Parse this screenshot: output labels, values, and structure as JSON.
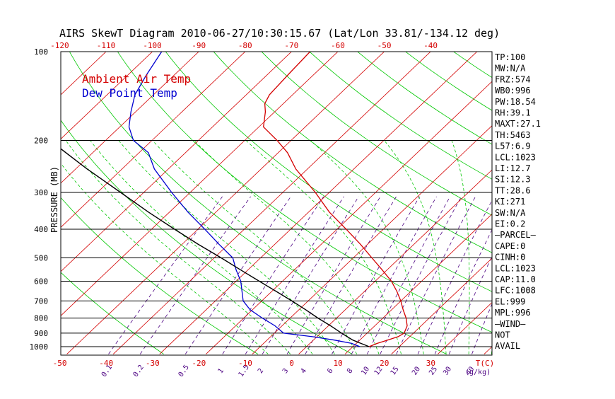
{
  "chart_data": {
    "type": "line",
    "title": "AIRS SkewT Diagram 2010-06-27/10:30:15.67 (Lat/Lon 33.81/-134.12 deg)",
    "ylabel": "PRESSURE (MB)",
    "xlabel_bottom_unit": "T(C)",
    "mixing_ratio_unit": "(g/kg)",
    "grid": true,
    "yscale": "log",
    "ylim": [
      1050,
      100
    ],
    "xlim_at_1000mb": [
      -53,
      40
    ],
    "pressure_ticks": [
      100,
      200,
      300,
      400,
      500,
      600,
      700,
      800,
      900,
      1000
    ],
    "pressure_lines": [
      100,
      200,
      300,
      400,
      500,
      600,
      700,
      800,
      900,
      1000
    ],
    "top_temp_ticks": [
      -120,
      -110,
      -100,
      -90,
      -80,
      -70,
      -60,
      -50,
      -40
    ],
    "bottom_temp_ticks": [
      -50,
      -40,
      -30,
      -20,
      -10,
      0,
      10,
      20,
      30
    ],
    "isotherms": [
      -160,
      -150,
      -140,
      -130,
      -120,
      -110,
      -100,
      -90,
      -80,
      -70,
      -60,
      -50,
      -40,
      -30,
      -20,
      -10,
      0,
      10,
      20,
      30,
      40
    ],
    "dry_adiabats_theta_k": [
      240,
      260,
      280,
      300,
      320,
      340,
      360,
      380,
      400,
      420,
      440,
      460,
      480,
      500,
      520,
      540,
      560,
      580
    ],
    "moist_adiabats_c": [
      -10,
      -5,
      0,
      5,
      10,
      15,
      20,
      25,
      30,
      35,
      40
    ],
    "mixing_ratio_labels": [
      "0.1",
      "0.2",
      "0.5",
      "1",
      "1.5",
      "2",
      "3",
      "4",
      "6",
      "8",
      "10",
      "12",
      "15",
      "20",
      "25",
      "30",
      "40"
    ],
    "mixing_ratio_values": [
      0.1,
      0.2,
      0.5,
      1,
      1.5,
      2,
      3,
      4,
      6,
      8,
      10,
      12,
      15,
      20,
      25,
      30,
      40
    ],
    "series": [
      {
        "name": "Ambient Air Temp",
        "color": "#d40000",
        "p": [
          1000,
          975,
          950,
          925,
          900,
          850,
          800,
          750,
          700,
          650,
          600,
          550,
          500,
          450,
          400,
          350,
          300,
          250,
          220,
          200,
          180,
          160,
          150,
          140,
          120,
          100
        ],
        "t": [
          13.5,
          14.5,
          16.0,
          17.5,
          18.0,
          17.0,
          15.0,
          12.5,
          10.0,
          7.0,
          3.5,
          -1.0,
          -6.0,
          -11.5,
          -18.0,
          -25.5,
          -33.0,
          -42.5,
          -48.0,
          -53.0,
          -59.0,
          -62.0,
          -64.0,
          -65.0,
          -65.5,
          -66.0
        ]
      },
      {
        "name": "Dew Point Temp",
        "color": "#0000d0",
        "p": [
          1000,
          975,
          950,
          925,
          900,
          850,
          800,
          750,
          700,
          600,
          550,
          500,
          450,
          400,
          350,
          300,
          250,
          220,
          200,
          180,
          160,
          140,
          120,
          100
        ],
        "t": [
          11.5,
          9.0,
          4.5,
          -1.0,
          -8.0,
          -11.5,
          -16.0,
          -20.5,
          -24.0,
          -29.0,
          -32.5,
          -36.0,
          -42.0,
          -48.5,
          -56.0,
          -64.0,
          -73.0,
          -78.0,
          -84.0,
          -88.0,
          -91.0,
          -94.0,
          -96.0,
          -98.0
        ]
      },
      {
        "name": "",
        "color": "#000000",
        "p": [
          1000,
          975,
          950,
          925,
          900,
          850,
          800,
          750,
          700,
          650,
          600,
          550,
          500,
          450,
          400,
          350,
          300,
          250,
          200,
          180,
          160,
          150
        ],
        "t": [
          13.5,
          11.0,
          8.5,
          6.5,
          4.5,
          0.5,
          -4.0,
          -8.5,
          -13.5,
          -19.0,
          -25.0,
          -31.5,
          -38.5,
          -46.5,
          -55.0,
          -64.5,
          -75.0,
          -87.5,
          -102.0,
          -108.5,
          -115.5,
          -119.5
        ]
      }
    ],
    "legend": [
      {
        "label": "Ambient Air Temp",
        "color": "#d40000"
      },
      {
        "label": "Dew Point Temp",
        "color": "#0000d0"
      }
    ],
    "legend_position": "top-left",
    "indices": [
      "TP:100",
      "MW:N/A",
      "FRZ:574",
      "WB0:996",
      "PW:18.54",
      "RH:39.1",
      "MAXT:27.1",
      "TH:5463",
      "L57:6.9",
      "LCL:1023",
      "LI:12.7",
      "SI:12.3",
      "TT:28.6",
      "KI:271",
      "SW:N/A",
      "EI:0.2",
      "—PARCEL—",
      "CAPE:0",
      "CINH:0",
      "LCL:1023",
      "CAP:11.0",
      "LFC:1008",
      "EL:999",
      "MPL:996",
      "—WIND—",
      "NOT",
      "AVAIL"
    ],
    "colors": {
      "isotherm": "#d40000",
      "dry_adiabat": "#00c800",
      "moist_adiabat": "#00c800",
      "mixing_ratio": "#4b0082",
      "isobar": "#000000",
      "temperature": "#d40000",
      "dewpoint": "#0000d0",
      "parcel": "#000000"
    }
  }
}
